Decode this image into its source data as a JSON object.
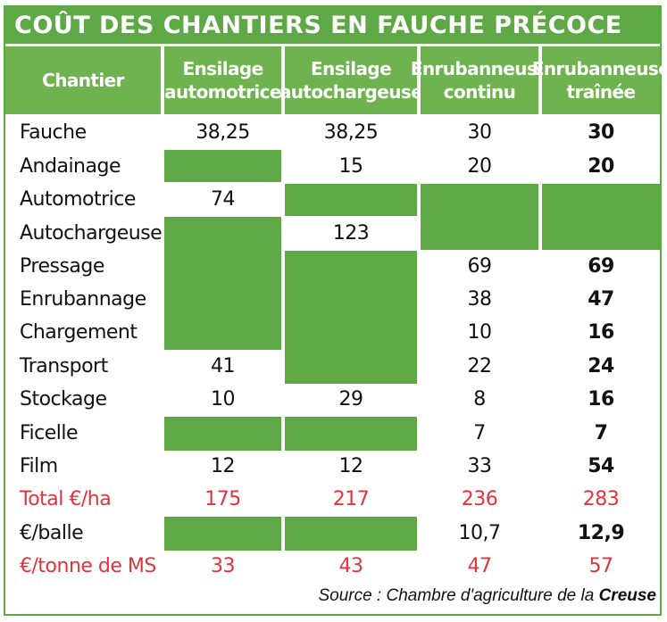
{
  "title": "COÛT DES CHANTIERS EN FAUCHE PRÉCOCE",
  "columns": [
    [
      "Chantier"
    ],
    [
      "Ensilage",
      "automotrice"
    ],
    [
      "Ensilage",
      "autochargeuse"
    ],
    [
      "Enrubanneuse",
      "continu"
    ],
    [
      "Enrubanneuse",
      "traînée"
    ]
  ],
  "rows": [
    {
      "label": "Fauche",
      "values": [
        "38,25",
        "38,25",
        "30",
        "30"
      ]
    },
    {
      "label": "Andainage",
      "values": [
        "",
        "15",
        "20",
        "20"
      ]
    },
    {
      "label": "Automotrice",
      "values": [
        "74",
        "",
        "",
        ""
      ]
    },
    {
      "label": "Autochargeuse",
      "values": [
        "",
        "123",
        "",
        ""
      ]
    },
    {
      "label": "Pressage",
      "values": [
        "",
        "",
        "69",
        "69"
      ]
    },
    {
      "label": "Enrubannage",
      "values": [
        "",
        "",
        "38",
        "47"
      ]
    },
    {
      "label": "Chargement",
      "values": [
        "",
        "",
        "10",
        "16"
      ]
    },
    {
      "label": "Transport",
      "values": [
        "41",
        "",
        "22",
        "24"
      ]
    },
    {
      "label": "Stockage",
      "values": [
        "10",
        "29",
        "8",
        "16"
      ]
    },
    {
      "label": "Ficelle",
      "values": [
        "",
        "",
        "7",
        "7"
      ]
    },
    {
      "label": "Film",
      "values": [
        "12",
        "12",
        "33",
        "54"
      ]
    },
    {
      "label": "Total €/ha",
      "values": [
        "175",
        "217",
        "236",
        "283"
      ],
      "highlight": true
    },
    {
      "label": "€/balle",
      "values": [
        "",
        "",
        "10,7",
        "12,9"
      ]
    },
    {
      "label": "€/tonne de MS",
      "values": [
        "33",
        "43",
        "47",
        "57"
      ],
      "highlight": true
    }
  ],
  "source_prefix": "Source : Chambre d'agriculture de la ",
  "source_emphasis": "Creuse",
  "colors": {
    "green": "#5fa846",
    "header_green": "#6fb250",
    "red": "#e2343c"
  }
}
